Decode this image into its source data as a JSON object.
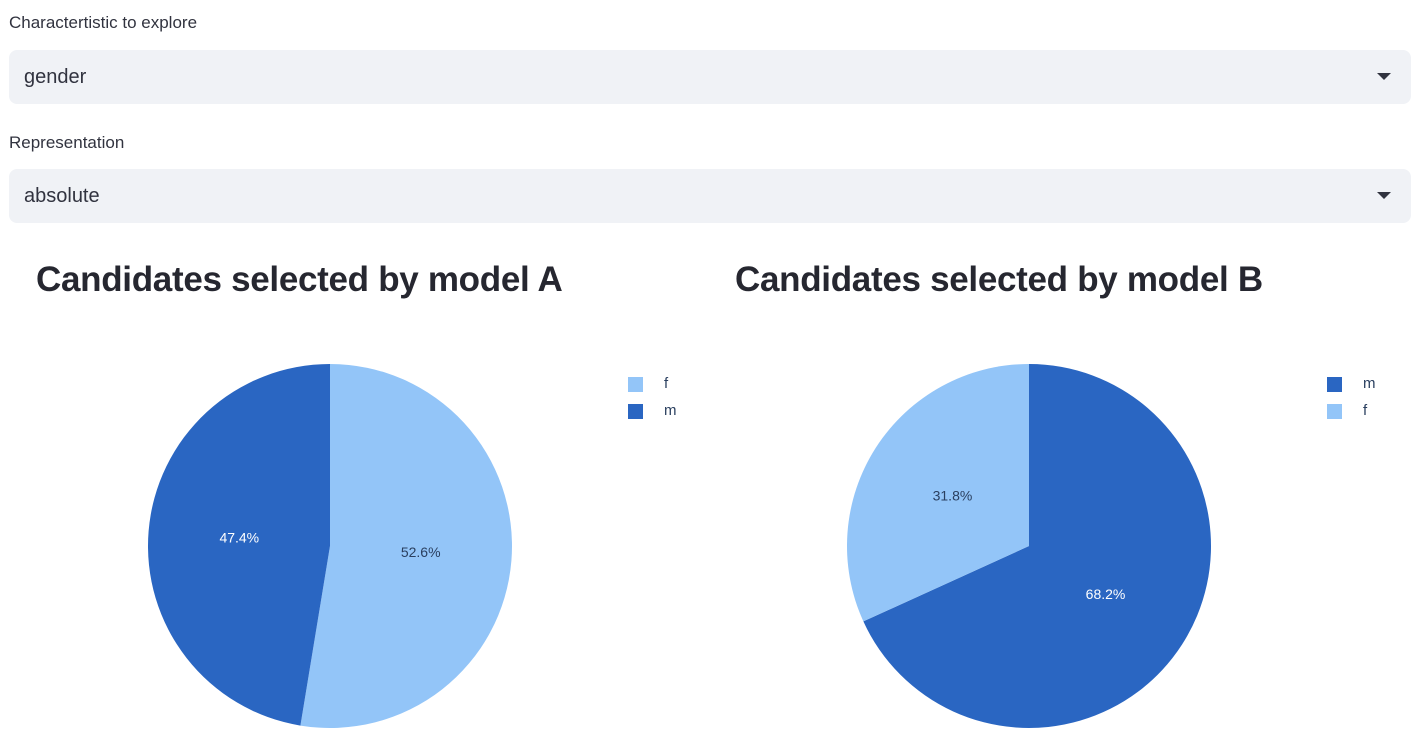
{
  "controls": {
    "characteristic": {
      "label": "Charactertistic to explore",
      "value": "gender"
    },
    "representation": {
      "label": "Representation",
      "value": "absolute"
    }
  },
  "colors": {
    "light": "#93c5f8",
    "dark": "#2a66c2"
  },
  "chart_data": [
    {
      "type": "pie",
      "title": "Candidates selected by model A",
      "slices": [
        {
          "label": "f",
          "value": 52.6,
          "text": "52.6%",
          "color": "#93c5f8",
          "text_color": "#2a3f5f"
        },
        {
          "label": "m",
          "value": 47.4,
          "text": "47.4%",
          "color": "#2a66c2",
          "text_color": "#ffffff"
        }
      ],
      "legend": [
        "f",
        "m"
      ],
      "legend_placement": "top-right"
    },
    {
      "type": "pie",
      "title": "Candidates selected by model B",
      "slices": [
        {
          "label": "m",
          "value": 68.2,
          "text": "68.2%",
          "color": "#2a66c2",
          "text_color": "#ffffff"
        },
        {
          "label": "f",
          "value": 31.8,
          "text": "31.8%",
          "color": "#93c5f8",
          "text_color": "#2a3f5f"
        }
      ],
      "legend": [
        "m",
        "f"
      ],
      "legend_placement": "top-right"
    }
  ]
}
